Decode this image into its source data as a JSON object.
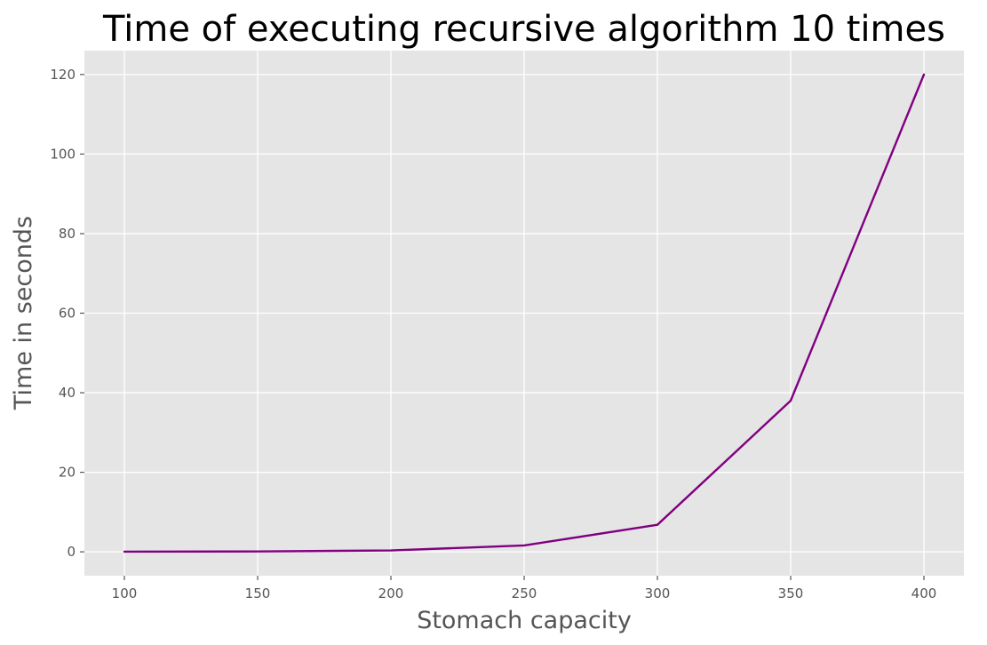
{
  "chart_data": {
    "type": "line",
    "title": "Time of executing recursive algorithm 10 times",
    "xlabel": "Stomach capacity",
    "ylabel": "Time in seconds",
    "x": [
      100,
      150,
      200,
      250,
      300,
      350,
      400
    ],
    "series": [
      {
        "values": [
          0.05,
          0.1,
          0.35,
          1.6,
          6.8,
          38.0,
          120.0
        ],
        "color": "#800080"
      }
    ],
    "xlim": [
      85,
      415
    ],
    "ylim": [
      -6,
      126
    ],
    "xticks": [
      100,
      150,
      200,
      250,
      300,
      350,
      400
    ],
    "yticks": [
      0,
      20,
      40,
      60,
      80,
      100,
      120
    ],
    "grid": true,
    "background": "#e5e5e5",
    "grid_color": "#ffffff"
  }
}
